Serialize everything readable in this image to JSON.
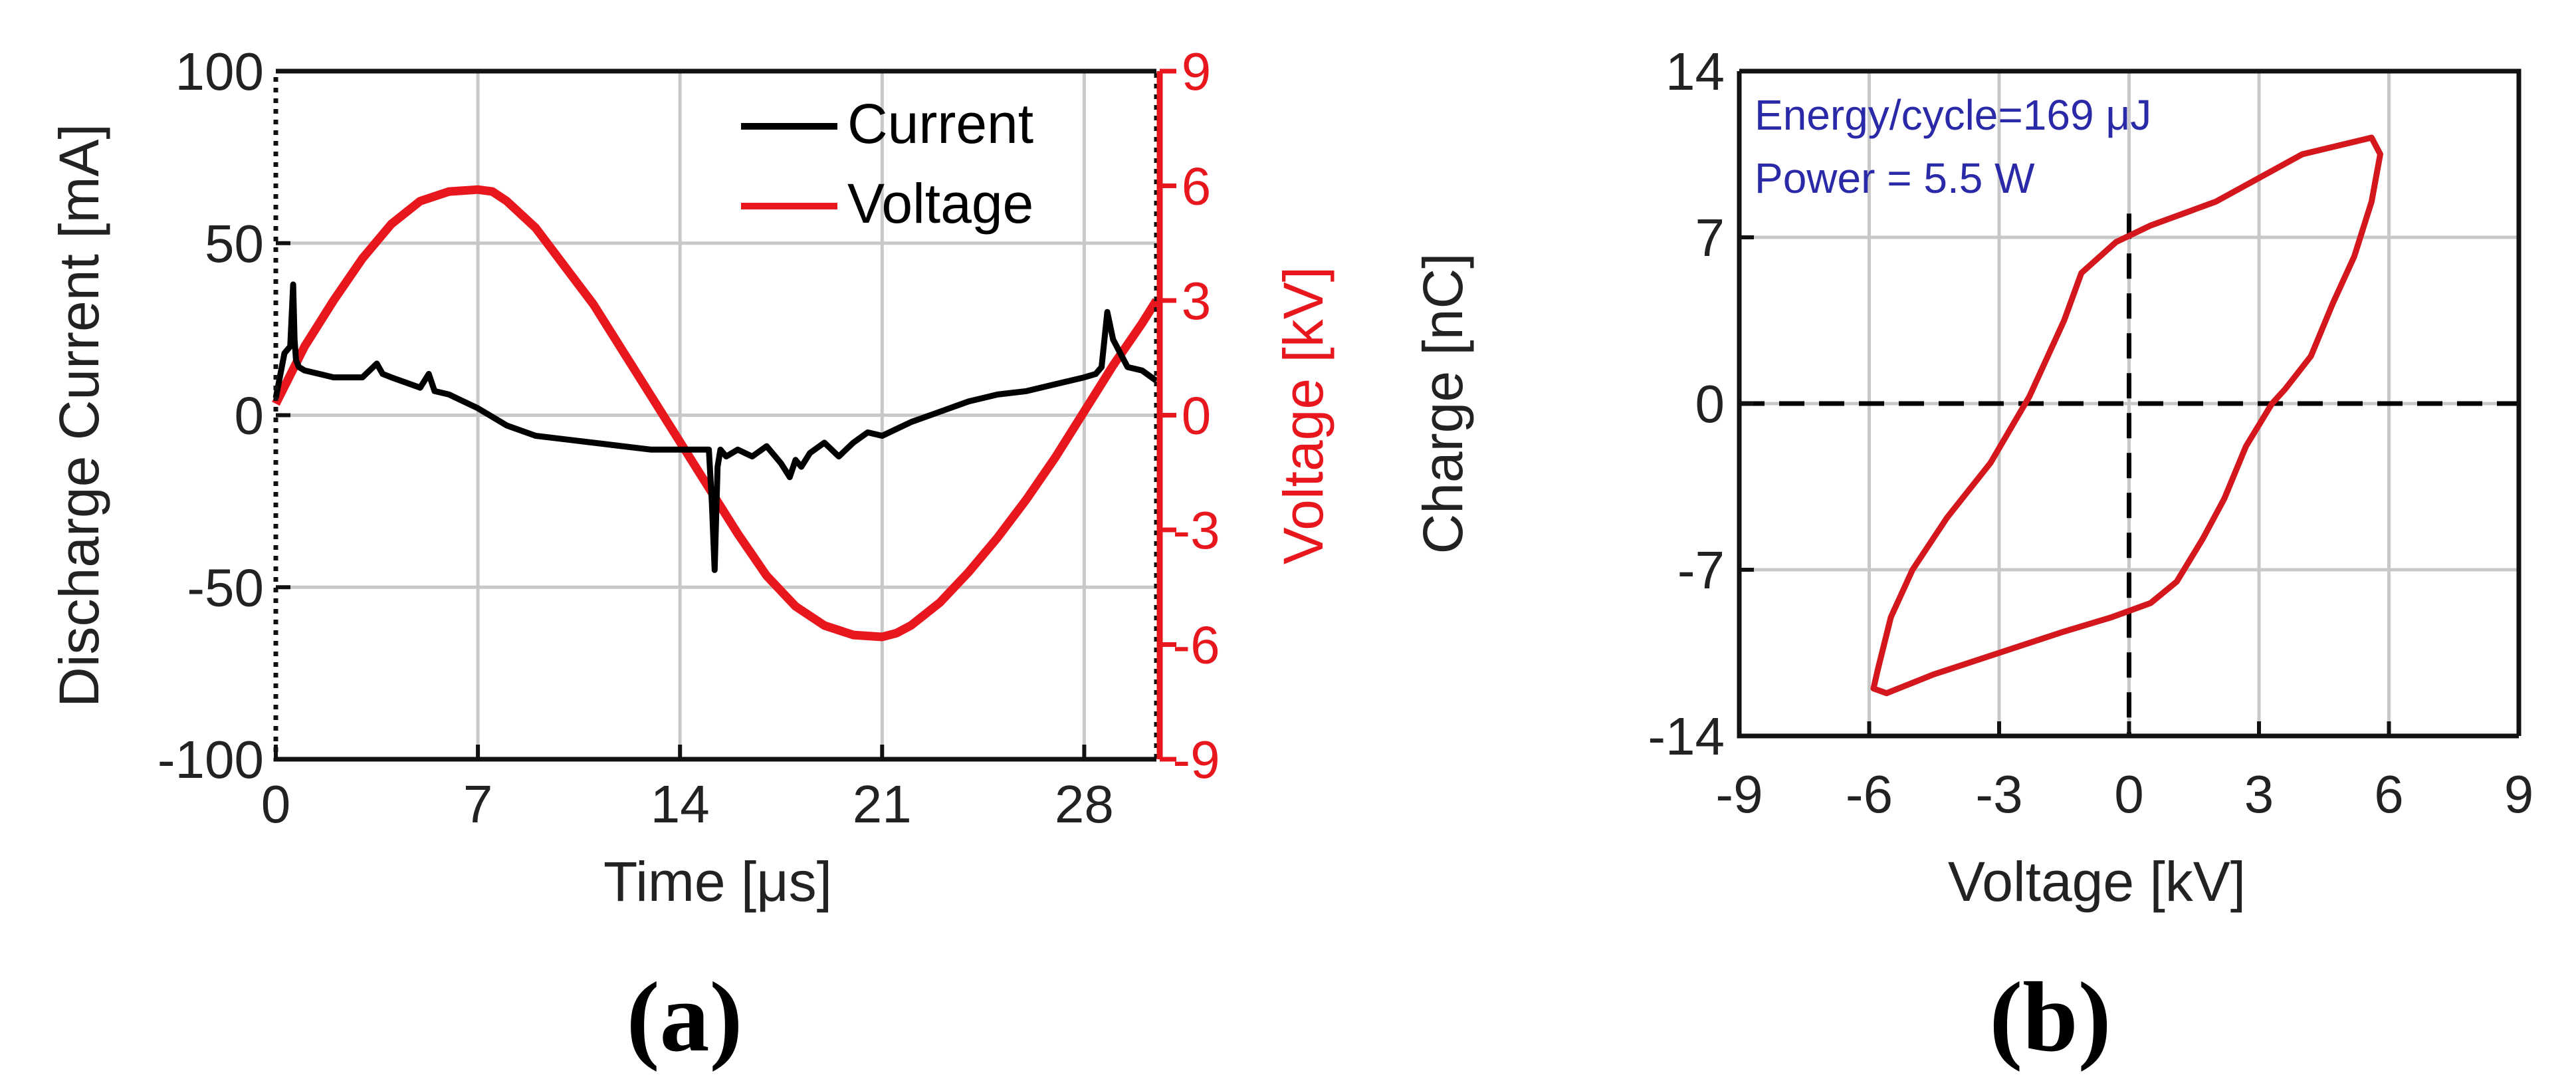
{
  "chart_data": [
    {
      "type": "line",
      "panel_label": "(a)",
      "xlabel": "Time [μs]",
      "ylabel_left": "Discharge Current [mA]",
      "ylabel_right": "Voltage [kV]",
      "xlim": [
        0,
        30.5
      ],
      "ylim_left": [
        -100,
        100
      ],
      "ylim_right": [
        -9,
        9
      ],
      "xticks": [
        "0",
        "7",
        "14",
        "21",
        "28"
      ],
      "xtick_values": [
        0,
        7,
        14,
        21,
        28
      ],
      "yticks_left": [
        "100",
        "50",
        "0",
        "-50",
        "-100"
      ],
      "ytick_values_left": [
        100,
        50,
        0,
        -50,
        -100
      ],
      "yticks_right": [
        "9",
        "6",
        "3",
        "0",
        "-3",
        "-6",
        "-9"
      ],
      "ytick_values_right": [
        9,
        6,
        3,
        0,
        -3,
        -6,
        -9
      ],
      "grid": true,
      "legend_position": "top-right",
      "colors": {
        "current": "#000000",
        "voltage": "#e8171e",
        "right_axis": "#e8171e"
      },
      "series": [
        {
          "name": "Current",
          "axis": "left",
          "x": [
            0,
            0.3,
            0.5,
            0.6,
            0.65,
            0.7,
            0.8,
            1.0,
            1.5,
            2,
            3,
            3.5,
            3.7,
            4,
            5,
            5.3,
            5.5,
            6,
            6.5,
            7,
            8,
            9,
            10,
            11,
            12,
            13,
            14,
            14.5,
            15,
            15.1,
            15.2,
            15.3,
            15.4,
            15.6,
            16,
            16.5,
            17,
            17.5,
            17.8,
            18,
            18.2,
            18.5,
            19,
            19.5,
            20,
            20.5,
            21,
            22,
            23,
            24,
            25,
            26,
            27,
            28,
            28.4,
            28.6,
            28.8,
            29,
            29.5,
            30,
            30.5
          ],
          "y": [
            5,
            18,
            20,
            38,
            22,
            16,
            14,
            13,
            12,
            11,
            11,
            15,
            12,
            11,
            8,
            12,
            7,
            6,
            4,
            2,
            -3,
            -6,
            -7,
            -8,
            -9,
            -10,
            -10,
            -10,
            -10,
            -25,
            -45,
            -15,
            -10,
            -12,
            -10,
            -12,
            -9,
            -14,
            -18,
            -13,
            -15,
            -11,
            -8,
            -12,
            -8,
            -5,
            -6,
            -2,
            1,
            4,
            6,
            7,
            9,
            11,
            12,
            14,
            30,
            22,
            14,
            13,
            10
          ]
        },
        {
          "name": "Voltage",
          "axis": "right",
          "x": [
            0,
            1,
            2,
            3,
            4,
            5,
            6,
            7,
            7.5,
            8,
            9,
            10,
            11,
            12,
            13,
            14,
            15,
            16,
            17,
            18,
            19,
            20,
            21,
            21.5,
            22,
            23,
            24,
            25,
            26,
            27,
            28,
            29,
            30,
            30.5
          ],
          "y": [
            0.3,
            1.8,
            3.0,
            4.1,
            5.0,
            5.6,
            5.85,
            5.9,
            5.85,
            5.6,
            4.9,
            3.9,
            2.9,
            1.7,
            0.5,
            -0.7,
            -1.9,
            -3.1,
            -4.2,
            -5.0,
            -5.5,
            -5.75,
            -5.8,
            -5.7,
            -5.5,
            -4.9,
            -4.1,
            -3.2,
            -2.2,
            -1.1,
            0.1,
            1.3,
            2.4,
            3.0
          ]
        }
      ]
    },
    {
      "type": "line",
      "panel_label": "(b)",
      "xlabel": "Voltage [kV]",
      "ylabel": "Charge [nC]",
      "xlim": [
        -9,
        9
      ],
      "ylim": [
        -14,
        14
      ],
      "xticks": [
        "-9",
        "-6",
        "-3",
        "0",
        "3",
        "6",
        "9"
      ],
      "xtick_values": [
        -9,
        -6,
        -3,
        0,
        3,
        6,
        9
      ],
      "yticks": [
        "14",
        "7",
        "0",
        "-7",
        "-14"
      ],
      "ytick_values": [
        14,
        7,
        0,
        -7,
        -14
      ],
      "grid": true,
      "annotations": [
        "Energy/cycle=169 μJ",
        "Power = 5.5 W"
      ],
      "colors": {
        "loop": "#d4171c",
        "annotation": "#2a2aa8",
        "crosshair": "#000000"
      },
      "series": [
        {
          "name": "Lissajous",
          "x": [
            -5.9,
            -5.8,
            -5.5,
            -5.0,
            -4.2,
            -3.2,
            -2.3,
            -1.5,
            -1.1,
            -0.3,
            0.5,
            2.0,
            4.0,
            5.6,
            5.8,
            5.6,
            5.2,
            4.7,
            4.2,
            3.6,
            3.3,
            2.7,
            2.2,
            1.7,
            1.1,
            0.5,
            -0.4,
            -1.5,
            -3.0,
            -4.5,
            -5.6,
            -5.9
          ],
          "y": [
            -12.0,
            -11.2,
            -9.0,
            -7.0,
            -4.8,
            -2.5,
            0.3,
            3.5,
            5.5,
            6.8,
            7.5,
            8.5,
            10.5,
            11.2,
            10.5,
            8.5,
            6.2,
            4.2,
            2.0,
            0.6,
            0.0,
            -1.8,
            -4.0,
            -5.7,
            -7.5,
            -8.4,
            -9.0,
            -9.6,
            -10.5,
            -11.4,
            -12.2,
            -12.0
          ]
        }
      ]
    }
  ]
}
